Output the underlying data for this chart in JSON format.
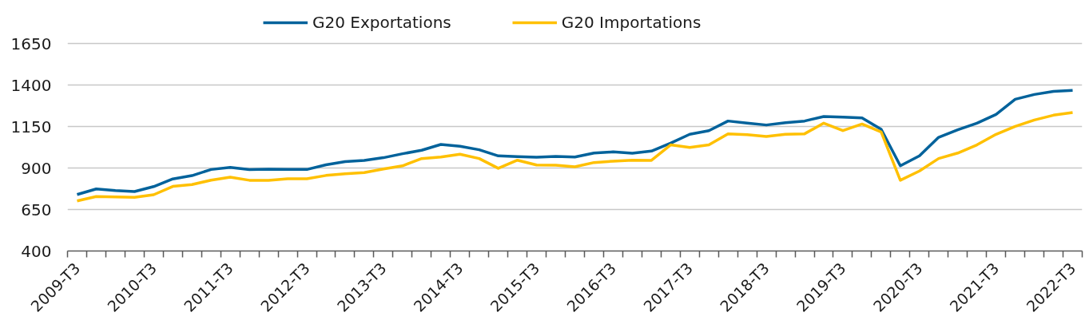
{
  "chart_data": {
    "type": "line",
    "categories": [
      "2009-T3",
      null,
      null,
      null,
      "2010-T3",
      null,
      null,
      null,
      "2011-T3",
      null,
      null,
      null,
      "2012-T3",
      null,
      null,
      null,
      "2013-T3",
      null,
      null,
      null,
      "2014-T3",
      null,
      null,
      null,
      "2015-T3",
      null,
      null,
      null,
      "2016-T3",
      null,
      null,
      null,
      "2017-T3",
      null,
      null,
      null,
      "2018-T3",
      null,
      null,
      null,
      "2019-T3",
      null,
      null,
      null,
      "2020-T3",
      null,
      null,
      null,
      "2021-T3",
      null,
      null,
      null,
      "2022-T3"
    ],
    "series": [
      {
        "name": "G20 Exportations",
        "color": "#00629b",
        "values": [
          740,
          774,
          764,
          758,
          788,
          834,
          854,
          891,
          904,
          890,
          893,
          891,
          891,
          919,
          938,
          946,
          962,
          986,
          1007,
          1042,
          1031,
          1010,
          973,
          968,
          965,
          970,
          966,
          990,
          997,
          989,
          1002,
          1050,
          1103,
          1125,
          1183,
          1170,
          1159,
          1173,
          1183,
          1210,
          1207,
          1202,
          1133,
          913,
          973,
          1085,
          1130,
          1170,
          1223,
          1314,
          1343,
          1362,
          1367
        ]
      },
      {
        "name": "G20 Importations",
        "color": "#ffc000",
        "values": [
          702,
          728,
          726,
          723,
          739,
          789,
          800,
          827,
          845,
          826,
          826,
          835,
          835,
          855,
          865,
          872,
          894,
          913,
          957,
          966,
          983,
          957,
          898,
          947,
          918,
          917,
          907,
          933,
          941,
          947,
          946,
          1039,
          1024,
          1039,
          1106,
          1101,
          1090,
          1103,
          1106,
          1170,
          1125,
          1165,
          1117,
          826,
          882,
          957,
          990,
          1039,
          1103,
          1151,
          1189,
          1218,
          1234
        ]
      }
    ],
    "ylim": [
      400,
      1650
    ],
    "yticks": [
      400,
      650,
      900,
      1150,
      1400,
      1650
    ],
    "grid": "y",
    "legend": "top"
  }
}
